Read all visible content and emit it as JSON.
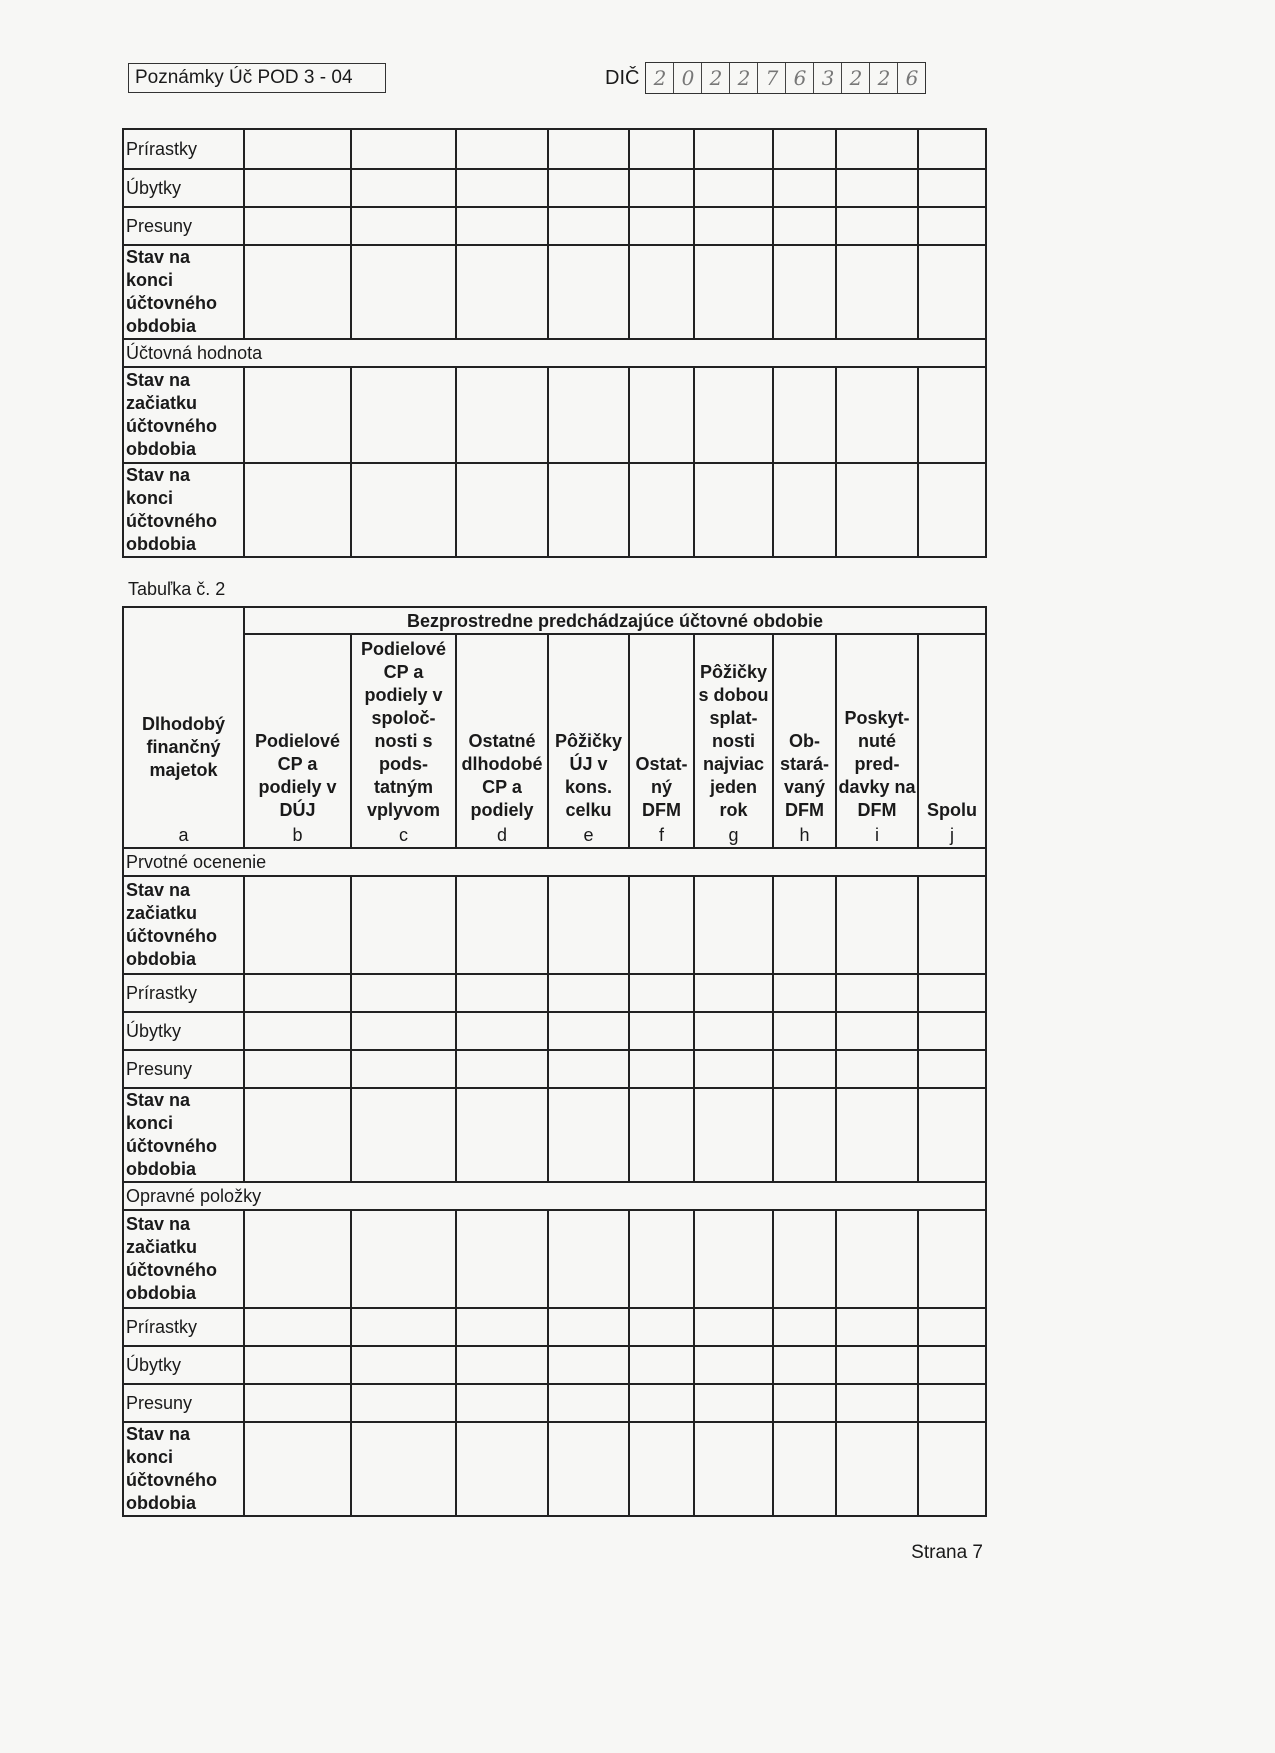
{
  "header": {
    "form_title": "Poznámky Úč POD 3 - 04",
    "dic_label": "DIČ",
    "dic_digits": [
      "2",
      "0",
      "2",
      "2",
      "7",
      "6",
      "3",
      "2",
      "2",
      "6"
    ]
  },
  "table1": {
    "rows": [
      {
        "label": "Prírastky",
        "bold": false,
        "type": "row"
      },
      {
        "label": "Úbytky",
        "bold": false,
        "type": "row"
      },
      {
        "label": "Presuny",
        "bold": false,
        "type": "row"
      },
      {
        "label": "Stav na konci účtovného obdobia",
        "bold": true,
        "type": "row"
      },
      {
        "label": "Účtovná hodnota",
        "bold": false,
        "type": "section"
      },
      {
        "label": "Stav na začiatku účtovného obdobia",
        "bold": true,
        "type": "row"
      },
      {
        "label": "Stav na konci účtovného obdobia",
        "bold": true,
        "type": "row"
      }
    ]
  },
  "table2": {
    "caption": "Tabuľka č. 2",
    "group_header": "Bezprostredne predchádzajúce účtovné obdobie",
    "columns": [
      {
        "label": "Dlhodobý finančný majetok",
        "letter": "a"
      },
      {
        "label": "Podielové CP a podiely v DÚJ",
        "letter": "b"
      },
      {
        "label": "Podielové CP a podiely v spoloč-nosti s pods-tatným vplyvom",
        "letter": "c"
      },
      {
        "label": "Ostatné dlhodobé CP a podiely",
        "letter": "d"
      },
      {
        "label": "Pôžičky ÚJ v kons. celku",
        "letter": "e"
      },
      {
        "label": "Ostat-ný DFM",
        "letter": "f"
      },
      {
        "label": "Pôžičky s dobou splat-nosti najviac jeden rok",
        "letter": "g"
      },
      {
        "label": "Ob-stará-vaný DFM",
        "letter": "h"
      },
      {
        "label": "Poskyt-nuté pred-davky na DFM",
        "letter": "i"
      },
      {
        "label": "Spolu",
        "letter": "j"
      }
    ],
    "rows": [
      {
        "label": "Prvotné ocenenie",
        "bold": false,
        "type": "section"
      },
      {
        "label": "Stav na začiatku účtovného obdobia",
        "bold": true,
        "type": "row"
      },
      {
        "label": "Prírastky",
        "bold": false,
        "type": "row"
      },
      {
        "label": "Úbytky",
        "bold": false,
        "type": "row"
      },
      {
        "label": "Presuny",
        "bold": false,
        "type": "row"
      },
      {
        "label": "Stav na konci účtovného obdobia",
        "bold": true,
        "type": "row"
      },
      {
        "label": "Opravné položky",
        "bold": false,
        "type": "section"
      },
      {
        "label": "Stav na začiatku účtovného obdobia",
        "bold": true,
        "type": "row"
      },
      {
        "label": "Prírastky",
        "bold": false,
        "type": "row"
      },
      {
        "label": "Úbytky",
        "bold": false,
        "type": "row"
      },
      {
        "label": "Presuny",
        "bold": false,
        "type": "row"
      },
      {
        "label": "Stav na konci účtovného obdobia",
        "bold": true,
        "type": "row"
      }
    ]
  },
  "footer": {
    "page": "Strana 7"
  }
}
